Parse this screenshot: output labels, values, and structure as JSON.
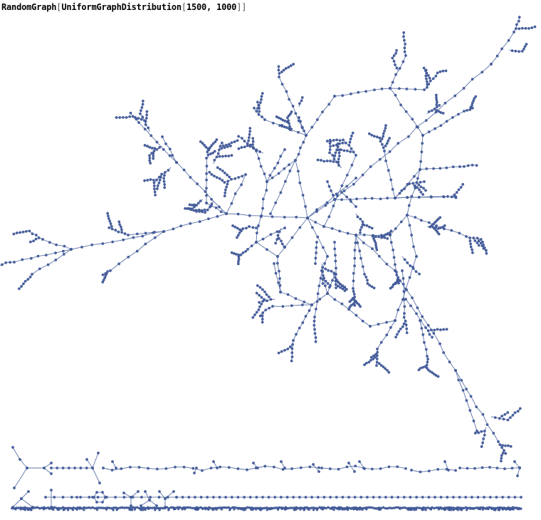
{
  "input_cell": {
    "head": "RandomGraph",
    "open_bracket": "[",
    "arg_head": "UniformGraphDistribution",
    "arg_open": "[",
    "n_vertices": "1500",
    "separator": ", ",
    "n_edges": "1000",
    "close_brackets": "]]"
  },
  "graph_output": {
    "vertex_count": 1500,
    "edge_count": 1000,
    "vertex_color": "#4b63a4",
    "edge_color": "#5d73a8",
    "background": "#ffffff"
  }
}
